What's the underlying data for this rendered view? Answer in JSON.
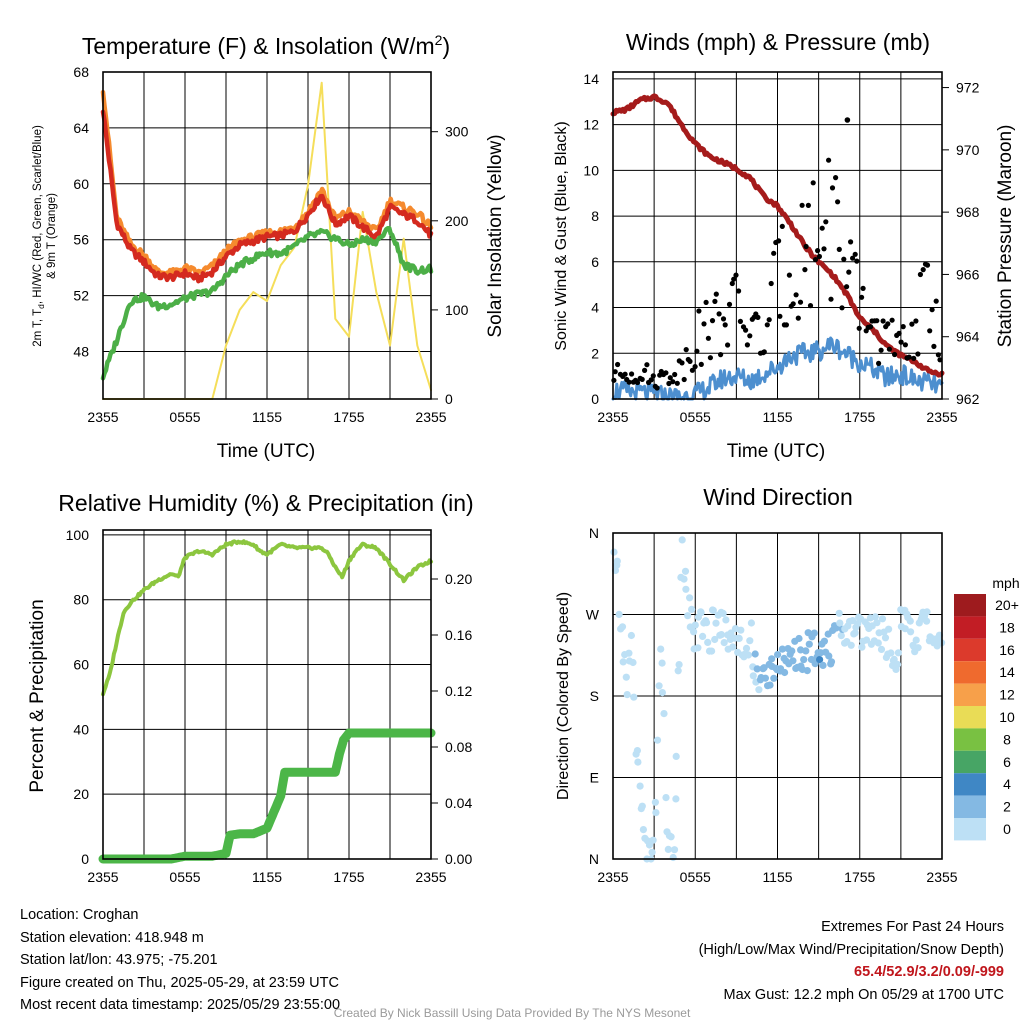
{
  "panels": {
    "temp": {
      "title": "Temperature (F) & Insolation (W/m",
      "title_sup": "2",
      "title_end": ")",
      "ylabel_line1": "2m T, T",
      "ylabel_sub": "d",
      "ylabel_line1_end": ", HI/WC (Red, Green, Scarlet/Blue)",
      "ylabel_line2": "& 9m T (Orange)",
      "y2label": "Solar Insolation (Yellow)",
      "xlabel": "Time (UTC)"
    },
    "wind": {
      "title": "Winds (mph) & Pressure (mb)",
      "ylabel": "Sonic Wind & Gust (Blue, Black)",
      "y2label": "Station Pressure (Maroon)",
      "xlabel": "Time (UTC)"
    },
    "rh": {
      "title": "Relative Humidity (%) & Precipitation (in)",
      "ylabel": "Percent & Precipitation"
    },
    "dir": {
      "title": "Wind Direction",
      "ylabel": "Direction (Colored By Speed)",
      "legend_title": "mph"
    }
  },
  "chart_data": [
    {
      "type": "line",
      "title": "Temperature (F) & Insolation (W/m2)",
      "xlabel": "Time (UTC)",
      "ylabel": "2m T, Td, HI/WC (Red, Green, Scarlet/Blue) & 9m T (Orange)",
      "y2label": "Solar Insolation (Yellow)",
      "x_ticks": [
        "2355",
        "0555",
        "1155",
        "1755",
        "2355"
      ],
      "y_ticks": [
        48,
        52,
        56,
        60,
        64,
        68
      ],
      "y2_ticks": [
        0,
        100,
        200,
        300
      ],
      "ylim": [
        44.6,
        68
      ],
      "y2lim": [
        0,
        367
      ],
      "x": [
        0,
        1,
        2,
        3,
        4,
        5,
        6,
        7,
        8,
        9,
        10,
        11,
        12,
        13,
        14,
        15,
        16,
        17,
        18,
        19,
        20,
        21,
        22,
        23,
        24
      ],
      "series": [
        {
          "name": "2m T",
          "color": "#d42a1f",
          "axis": "left",
          "values": [
            65.3,
            57.2,
            55.3,
            54.4,
            53.4,
            53.3,
            53.6,
            53.2,
            53.7,
            54.8,
            55.6,
            55.9,
            56.2,
            56.3,
            56.6,
            57.8,
            59.2,
            57.1,
            57.7,
            56.9,
            56.2,
            58.3,
            57.8,
            57.4,
            56.3
          ]
        },
        {
          "name": "9m T",
          "color": "#f58a2e",
          "axis": "left",
          "values": [
            66.8,
            57.6,
            55.7,
            54.9,
            53.7,
            53.6,
            54.0,
            53.6,
            54.1,
            55.2,
            55.9,
            56.2,
            56.5,
            56.6,
            56.9,
            58.0,
            59.6,
            57.5,
            58.0,
            57.3,
            56.6,
            58.8,
            58.3,
            57.9,
            56.9
          ]
        },
        {
          "name": "2m Td",
          "color": "#4caf47",
          "axis": "left",
          "values": [
            46.2,
            48.8,
            51.6,
            51.9,
            51.2,
            51.4,
            51.8,
            52.1,
            52.3,
            53.4,
            54.2,
            54.7,
            55.1,
            55.0,
            55.5,
            56.2,
            56.5,
            56.1,
            55.6,
            56.0,
            55.9,
            56.8,
            54.2,
            53.8,
            53.9
          ]
        },
        {
          "name": "Solar Insolation",
          "color": "#f5de5a",
          "axis": "right",
          "values": [
            0,
            0,
            0,
            0,
            0,
            0,
            0,
            0,
            0,
            60,
            100,
            120,
            110,
            150,
            170,
            240,
            355,
            90,
            70,
            210,
            120,
            60,
            180,
            60,
            10
          ]
        }
      ]
    },
    {
      "type": "scatter",
      "title": "Winds (mph) & Pressure (mb)",
      "xlabel": "Time (UTC)",
      "ylabel": "Sonic Wind & Gust (Blue, Black)",
      "y2label": "Station Pressure (Maroon)",
      "x_ticks": [
        "2355",
        "0555",
        "1155",
        "1755",
        "2355"
      ],
      "y_ticks": [
        0,
        2,
        4,
        6,
        8,
        10,
        12,
        14
      ],
      "y2_ticks": [
        962,
        964,
        966,
        968,
        970,
        972
      ],
      "ylim": [
        0,
        14.3
      ],
      "y2lim": [
        962,
        972.5
      ],
      "x": [
        0,
        1,
        2,
        3,
        4,
        5,
        6,
        7,
        8,
        9,
        10,
        11,
        12,
        13,
        14,
        15,
        16,
        17,
        18,
        19,
        20,
        21,
        22,
        23,
        24
      ],
      "series": [
        {
          "name": "Sonic Wind",
          "color": "#4d8fcf",
          "axis": "left",
          "values": [
            0.4,
            0.3,
            0.3,
            0.2,
            0.1,
            0.1,
            0.2,
            0.5,
            0.9,
            1.0,
            0.8,
            1.1,
            1.4,
            1.9,
            2.0,
            2.1,
            2.4,
            2.0,
            1.6,
            1.3,
            0.9,
            1.1,
            0.8,
            0.7,
            0.5
          ]
        },
        {
          "name": "Gust",
          "color": "#000000",
          "axis": "left",
          "values": [
            1.0,
            1.1,
            1.2,
            0.8,
            1.0,
            1.3,
            2.5,
            3.0,
            3.5,
            3.8,
            3.0,
            2.5,
            5.0,
            5.5,
            6.5,
            7.0,
            8.0,
            5.0,
            4.0,
            3.0,
            2.5,
            2.0,
            3.0,
            4.5,
            2.5
          ]
        },
        {
          "name": "Station Pressure",
          "color": "#a51b1b",
          "axis": "right",
          "values": [
            971.2,
            971.3,
            971.6,
            971.7,
            971.5,
            970.8,
            970.2,
            969.8,
            969.6,
            969.4,
            969.1,
            968.5,
            968.2,
            967.6,
            966.9,
            966.4,
            966.0,
            965.4,
            964.6,
            964.2,
            963.7,
            963.4,
            963.2,
            962.9,
            962.8
          ]
        }
      ],
      "max_gust": {
        "x": 17.1,
        "value": 12.2
      }
    },
    {
      "type": "line",
      "title": "Relative Humidity (%) & Precipitation (in)",
      "ylabel": "Percent & Precipitation",
      "x_ticks": [
        "2355",
        "0555",
        "1155",
        "1755",
        "2355"
      ],
      "y_ticks": [
        0,
        20,
        40,
        60,
        80,
        100
      ],
      "y2_ticks": [
        "0.00",
        "0.04",
        "0.08",
        "0.12",
        "0.16",
        "0.20"
      ],
      "ylim": [
        0,
        101.5
      ],
      "y2lim": [
        0,
        0.235
      ],
      "series": [
        {
          "name": "Relative Humidity",
          "color": "#8cc63f",
          "axis": "left",
          "x": [
            0,
            0.5,
            1,
            1.5,
            2,
            3,
            4,
            5,
            5.5,
            6,
            7,
            8,
            9,
            10,
            11,
            11.5,
            12,
            13,
            14,
            15,
            16,
            16.5,
            17,
            17.5,
            18,
            18.5,
            19,
            20,
            21,
            22,
            23,
            24
          ],
          "values": [
            51,
            57,
            67,
            76,
            79,
            83,
            86,
            88,
            87,
            93,
            95,
            94,
            97,
            98,
            97,
            95,
            94,
            97,
            96,
            96,
            96,
            94,
            90,
            87,
            92,
            95,
            97,
            96,
            91,
            86,
            90,
            92
          ]
        },
        {
          "name": "Precipitation",
          "color": "#4cb648",
          "axis": "right",
          "x": [
            0,
            5,
            6,
            8,
            9,
            9.3,
            10,
            11,
            12,
            13,
            13.3,
            14,
            15,
            16,
            17,
            17.3,
            17.6,
            18,
            19,
            20,
            21,
            22,
            23,
            24
          ],
          "values": [
            0,
            0,
            0.002,
            0.002,
            0.004,
            0.017,
            0.018,
            0.018,
            0.022,
            0.045,
            0.062,
            0.062,
            0.062,
            0.062,
            0.062,
            0.075,
            0.085,
            0.09,
            0.09,
            0.09,
            0.09,
            0.09,
            0.09,
            0.09
          ]
        }
      ]
    },
    {
      "type": "scatter",
      "title": "Wind Direction",
      "ylabel": "Direction (Colored By Speed)",
      "x_ticks": [
        "2355",
        "0555",
        "1155",
        "1755",
        "2355"
      ],
      "y_ticks": [
        "N",
        "E",
        "S",
        "W",
        "N"
      ],
      "ylim": [
        0,
        360
      ],
      "x": [
        0,
        0.3,
        0.6,
        1.0,
        1.4,
        1.8,
        2.5,
        3.0,
        3.5,
        4.0,
        4.5,
        5.0,
        5.5,
        6.0,
        6.5,
        7.0,
        7.5,
        8.0,
        8.5,
        9.0,
        9.5,
        10.0,
        10.5,
        11.0,
        11.5,
        12.0,
        12.5,
        13.0,
        13.5,
        14.0,
        14.5,
        15.0,
        15.5,
        16.0,
        16.5,
        17.0,
        17.5,
        18.0,
        18.5,
        19.0,
        19.5,
        20.0,
        20.5,
        21.0,
        21.5,
        22.0,
        22.5,
        23.0,
        23.5,
        24.0
      ],
      "direction_deg": [
        350,
        310,
        250,
        200,
        230,
        100,
        5,
        3,
        260,
        2,
        20,
        360,
        280,
        245,
        255,
        250,
        255,
        265,
        240,
        255,
        220,
        250,
        190,
        200,
        205,
        230,
        210,
        215,
        225,
        225,
        235,
        240,
        230,
        235,
        250,
        245,
        255,
        255,
        245,
        260,
        255,
        240,
        205,
        260,
        255,
        245,
        260,
        250,
        240,
        250
      ],
      "speed_mph": [
        0.5,
        0.5,
        0.5,
        0.5,
        0.5,
        0.5,
        0.3,
        0.3,
        0.5,
        0.3,
        0.3,
        0.5,
        0.8,
        1.0,
        0.8,
        1.0,
        0.8,
        1.0,
        1.2,
        1.0,
        1.1,
        1.4,
        2.2,
        2.5,
        2.8,
        3.2,
        3.0,
        2.8,
        3.4,
        3.6,
        3.2,
        3.8,
        3.2,
        2.6,
        2.2,
        1.4,
        1.2,
        1.2,
        1.0,
        0.9,
        0.8,
        1.0,
        1.1,
        0.8,
        0.9,
        0.8,
        0.7,
        0.7,
        0.6,
        0.5
      ],
      "legend": {
        "title": "mph",
        "labels": [
          "20+",
          "18",
          "16",
          "14",
          "12",
          "10",
          "8",
          "6",
          "4",
          "2",
          "0"
        ],
        "colors": [
          "#9e1b1e",
          "#c21d25",
          "#dc3a2c",
          "#ef6a2e",
          "#f7a04a",
          "#e9dc56",
          "#79c142",
          "#47a565",
          "#3f87c5",
          "#84b9e3",
          "#bde0f5"
        ]
      }
    }
  ],
  "footer": {
    "location": "Location: Croghan",
    "elevation": "Station elevation: 418.948 m",
    "latlon": "Station lat/lon: 43.975; -75.201",
    "created": "Figure created on Thu, 2025-05-29, at 23:59 UTC",
    "recent": "Most recent data timestamp: 2025/05/29 23:55:00",
    "extremes_title": "Extremes For Past 24 Hours",
    "extremes_desc": "(High/Low/Max Wind/Precipitation/Snow Depth)",
    "extremes_values": "65.4/52.9/3.2/0.09/-999",
    "max_gust": "Max Gust: 12.2 mph On 05/29 at 1700 UTC",
    "credit": "Created By Nick Bassill Using Data Provided By The NYS Mesonet"
  }
}
